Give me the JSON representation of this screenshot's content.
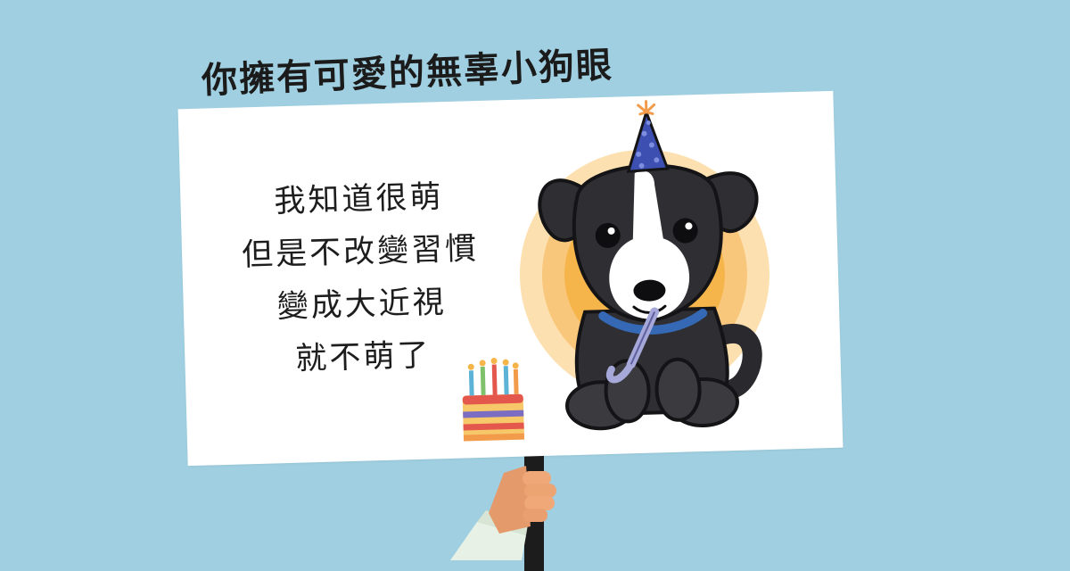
{
  "headline": "你擁有可愛的無辜小狗眼",
  "sign": {
    "lines": [
      "我知道很萌",
      "但是不改變習慣",
      "變成大近視",
      "就不萌了"
    ]
  },
  "colors": {
    "background": "#9fcfe0",
    "sign": "#ffffff",
    "glow": "#f6b54a",
    "dog": "#2f2f33",
    "collar": "#3568b5",
    "party_hat": "#3d4fb0"
  },
  "icons": [
    "party-hat-icon",
    "birthday-cake-icon",
    "party-blower-icon"
  ]
}
